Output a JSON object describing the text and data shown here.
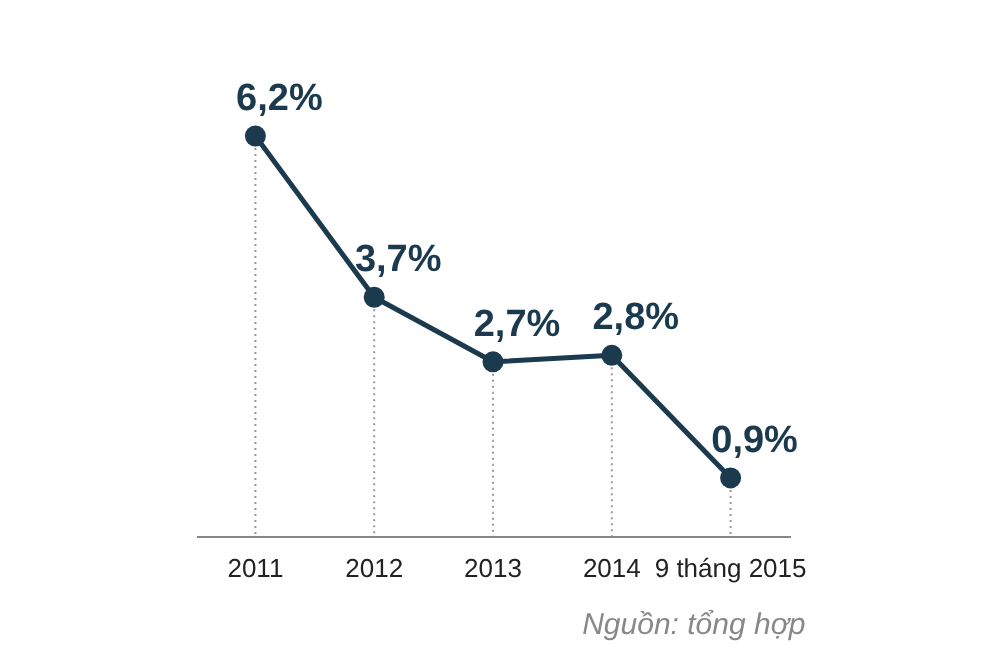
{
  "chart_data": {
    "type": "line",
    "categories": [
      "2011",
      "2012",
      "2013",
      "2014",
      "9 tháng 2015"
    ],
    "series": [
      {
        "color": "#1b3a4e",
        "values": [
          6.2,
          3.7,
          2.7,
          2.8,
          0.9
        ],
        "value_labels": [
          "6,2%",
          "3,7%",
          "2,7%",
          "2,8%",
          "0,9%"
        ]
      }
    ],
    "marker": "circle",
    "line_style": "solid",
    "annotations": [
      "Nguồn: tổng hợp"
    ]
  }
}
